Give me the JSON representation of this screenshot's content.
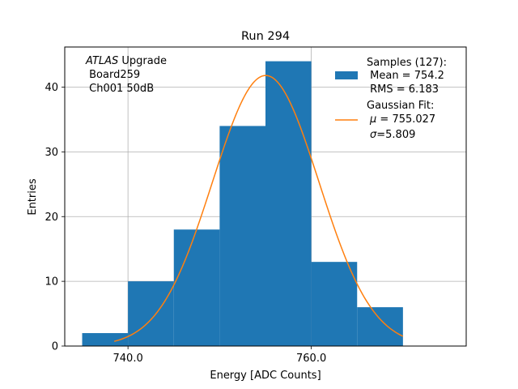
{
  "chart_data": {
    "type": "bar",
    "title": "Run 294",
    "xlabel": "Energy [ADC Counts]",
    "ylabel": "Entries",
    "xlim": [
      733.1,
      776.9
    ],
    "ylim": [
      0,
      46.2
    ],
    "grid": true,
    "bin_width": 5,
    "bins": [
      {
        "x0": 735,
        "x1": 740,
        "count": 2
      },
      {
        "x0": 740,
        "x1": 745,
        "count": 10
      },
      {
        "x0": 745,
        "x1": 750,
        "count": 18
      },
      {
        "x0": 750,
        "x1": 755,
        "count": 34
      },
      {
        "x0": 755,
        "x1": 760,
        "count": 44
      },
      {
        "x0": 760,
        "x1": 765,
        "count": 13
      },
      {
        "x0": 765,
        "x1": 770,
        "count": 6
      }
    ],
    "x_ticks": [
      {
        "value": 740,
        "label": "740.0"
      },
      {
        "value": 760,
        "label": "760.0"
      }
    ],
    "y_ticks": [
      {
        "value": 0,
        "label": "0"
      },
      {
        "value": 10,
        "label": "10"
      },
      {
        "value": 20,
        "label": "20"
      },
      {
        "value": 30,
        "label": "30"
      },
      {
        "value": 40,
        "label": "40"
      }
    ],
    "fit": {
      "mu": 755.027,
      "sigma": 5.809,
      "peak": 41.8,
      "x_range": [
        738.5,
        770.0
      ]
    },
    "bar_color": "#1f77b4",
    "fit_color": "#ff7f0e",
    "annotation": {
      "experiment": "ATLAS",
      "experiment_suffix": " Upgrade",
      "board": " Board259",
      "channel": " Ch001 50dB"
    },
    "legend": {
      "position": "top-right",
      "samples_lines": [
        "Samples (127):",
        " Mean = 754.2",
        " RMS = 6.183"
      ],
      "fit_title": "Gaussian Fit:",
      "fit_mu_symbol": "μ",
      "fit_mu_value": " = 755.027",
      "fit_sigma_symbol": "σ",
      "fit_sigma_value": "=5.809"
    }
  }
}
